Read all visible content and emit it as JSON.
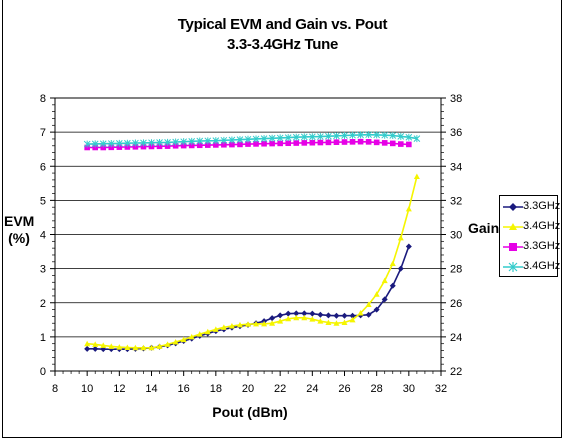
{
  "chart_data": {
    "type": "line",
    "title": "Typical EVM and Gain vs. Pout",
    "subtitle": "3.3-3.4GHz Tune",
    "xlabel": "Pout (dBm)",
    "ylabel_left": "EVM\n(%)",
    "ylabel_right": "Gain",
    "xlim": [
      8,
      32
    ],
    "xticks": [
      8,
      10,
      12,
      14,
      16,
      18,
      20,
      22,
      24,
      26,
      28,
      30,
      32
    ],
    "ylim_left": [
      0,
      8
    ],
    "yticks_left": [
      0,
      1,
      2,
      3,
      4,
      5,
      6,
      7,
      8
    ],
    "ylim_right": [
      22,
      38
    ],
    "yticks_right": [
      22,
      24,
      26,
      28,
      30,
      32,
      34,
      36,
      38
    ],
    "grid": "horizontal",
    "legend_position": "right",
    "series": [
      {
        "name": "3.3GHz",
        "axis": "left",
        "marker": "diamond",
        "color": "#1a1a7e",
        "x": [
          10,
          10.5,
          11,
          11.5,
          12,
          12.5,
          13,
          13.5,
          14,
          14.5,
          15,
          15.5,
          16,
          16.5,
          17,
          17.5,
          18,
          18.5,
          19,
          19.5,
          20,
          20.5,
          21,
          21.5,
          22,
          22.5,
          23,
          23.5,
          24,
          24.5,
          25,
          25.5,
          26,
          26.5,
          27,
          27.5,
          28,
          28.5,
          29,
          29.5,
          30
        ],
        "y": [
          0.65,
          0.65,
          0.64,
          0.64,
          0.64,
          0.64,
          0.65,
          0.66,
          0.68,
          0.71,
          0.75,
          0.81,
          0.88,
          0.95,
          1.03,
          1.1,
          1.17,
          1.22,
          1.27,
          1.31,
          1.35,
          1.4,
          1.46,
          1.55,
          1.63,
          1.68,
          1.69,
          1.69,
          1.68,
          1.65,
          1.63,
          1.62,
          1.62,
          1.62,
          1.63,
          1.65,
          1.8,
          2.1,
          2.5,
          3.0,
          3.65
        ]
      },
      {
        "name": "3.4GHz",
        "axis": "left",
        "marker": "triangle",
        "color": "#f5f500",
        "x": [
          10,
          10.5,
          11,
          11.5,
          12,
          12.5,
          13,
          13.5,
          14,
          14.5,
          15,
          15.5,
          16,
          16.5,
          17,
          17.5,
          18,
          18.5,
          19,
          19.5,
          20,
          20.5,
          21,
          21.5,
          22,
          22.5,
          23,
          23.5,
          24,
          24.5,
          25,
          25.5,
          26,
          26.5,
          27,
          27.5,
          28,
          28.5,
          29,
          29.5,
          30,
          30.5
        ],
        "y": [
          0.8,
          0.78,
          0.75,
          0.72,
          0.7,
          0.69,
          0.68,
          0.68,
          0.68,
          0.72,
          0.78,
          0.85,
          0.92,
          1.0,
          1.08,
          1.15,
          1.22,
          1.28,
          1.32,
          1.35,
          1.37,
          1.38,
          1.38,
          1.4,
          1.46,
          1.53,
          1.56,
          1.56,
          1.52,
          1.46,
          1.42,
          1.4,
          1.42,
          1.5,
          1.7,
          1.95,
          2.25,
          2.65,
          3.15,
          3.9,
          4.75,
          5.7
        ]
      },
      {
        "name": "3.3GHz",
        "axis": "right",
        "marker": "square",
        "color": "#e600e6",
        "x": [
          10,
          10.5,
          11,
          11.5,
          12,
          12.5,
          13,
          13.5,
          14,
          14.5,
          15,
          15.5,
          16,
          16.5,
          17,
          17.5,
          18,
          18.5,
          19,
          19.5,
          20,
          20.5,
          21,
          21.5,
          22,
          22.5,
          23,
          23.5,
          24,
          24.5,
          25,
          25.5,
          26,
          26.5,
          27,
          27.5,
          28,
          28.5,
          29,
          29.5,
          30
        ],
        "y": [
          35.1,
          35.1,
          35.1,
          35.11,
          35.12,
          35.13,
          35.14,
          35.15,
          35.16,
          35.17,
          35.18,
          35.2,
          35.21,
          35.22,
          35.23,
          35.24,
          35.25,
          35.26,
          35.27,
          35.28,
          35.3,
          35.31,
          35.32,
          35.33,
          35.34,
          35.35,
          35.36,
          35.37,
          35.38,
          35.39,
          35.4,
          35.41,
          35.42,
          35.43,
          35.44,
          35.43,
          35.4,
          35.37,
          35.34,
          35.3,
          35.28
        ]
      },
      {
        "name": "3.4GHz",
        "axis": "right",
        "marker": "star",
        "color": "#33cccc",
        "x": [
          10,
          10.5,
          11,
          11.5,
          12,
          12.5,
          13,
          13.5,
          14,
          14.5,
          15,
          15.5,
          16,
          16.5,
          17,
          17.5,
          18,
          18.5,
          19,
          19.5,
          20,
          20.5,
          21,
          21.5,
          22,
          22.5,
          23,
          23.5,
          24,
          24.5,
          25,
          25.5,
          26,
          26.5,
          27,
          27.5,
          28,
          28.5,
          29,
          29.5,
          30,
          30.5
        ],
        "y": [
          35.3,
          35.31,
          35.32,
          35.33,
          35.34,
          35.35,
          35.36,
          35.37,
          35.38,
          35.39,
          35.4,
          35.42,
          35.44,
          35.46,
          35.48,
          35.49,
          35.5,
          35.52,
          35.54,
          35.56,
          35.58,
          35.6,
          35.62,
          35.64,
          35.66,
          35.68,
          35.7,
          35.72,
          35.73,
          35.74,
          35.76,
          35.78,
          35.8,
          35.82,
          35.84,
          35.85,
          35.84,
          35.82,
          35.8,
          35.75,
          35.7,
          35.62
        ]
      }
    ]
  }
}
